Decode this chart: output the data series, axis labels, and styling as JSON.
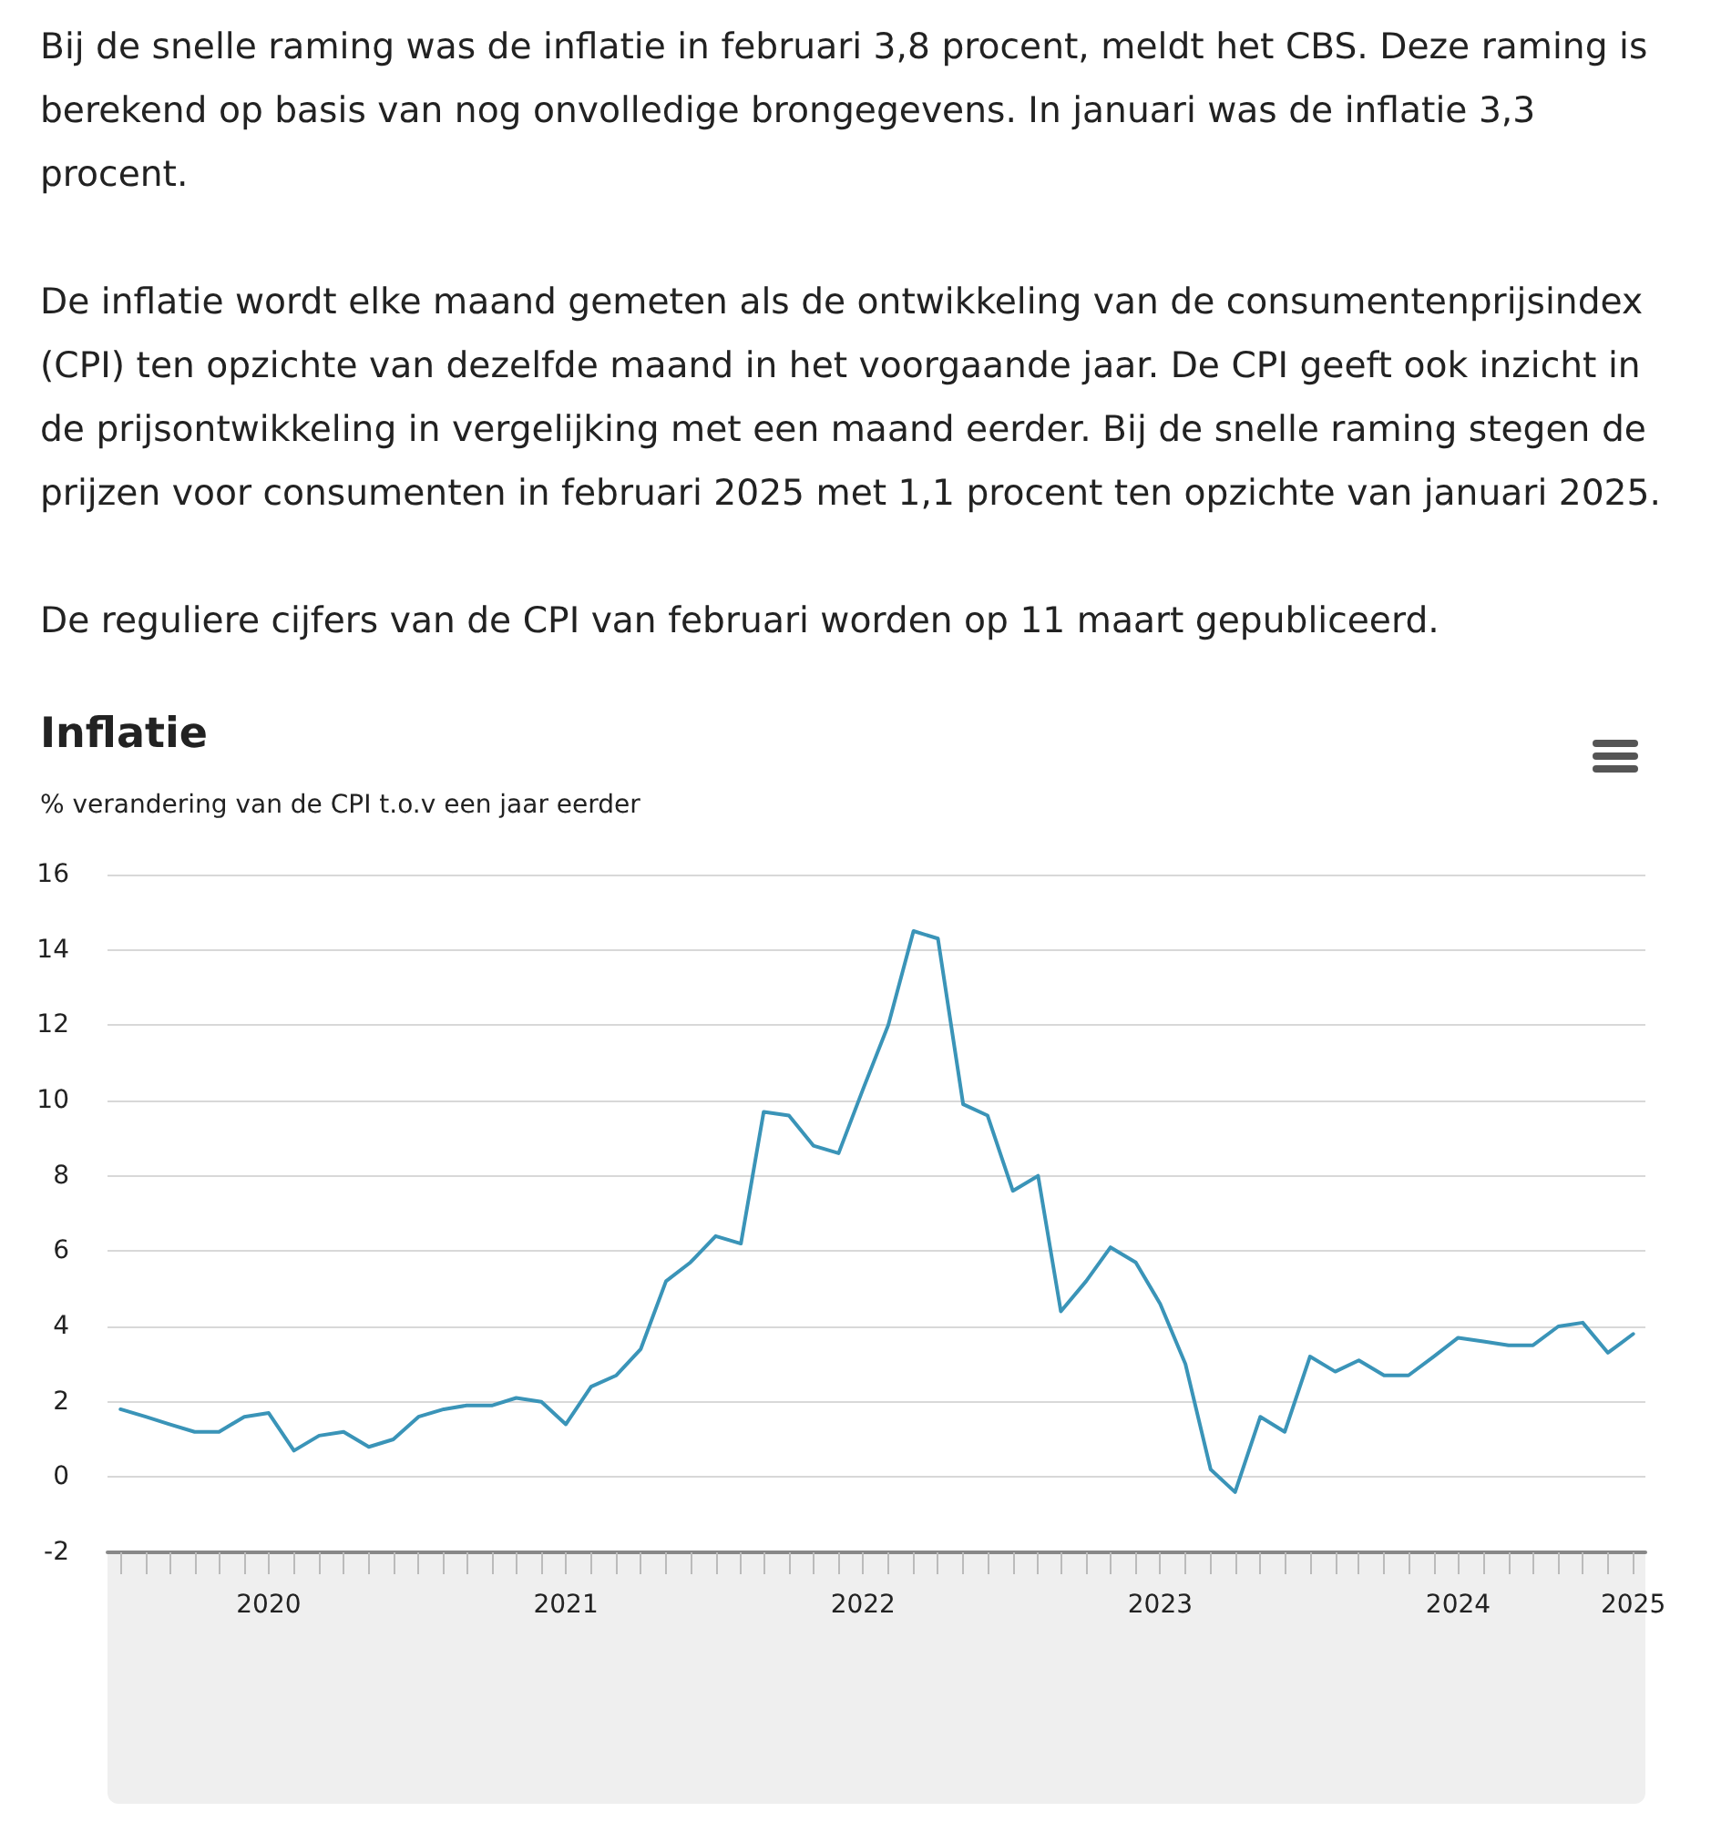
{
  "chart_data": {
    "type": "line",
    "title": "Inflatie",
    "ylabel": "% verandering van de CPI t.o.v een jaar eerder",
    "annotations": [
      "Bij de snelle raming was de inflatie in februari 3,8 procent, meldt het CBS. Deze raming is berekend op basis van nog onvolledige brongegevens. In januari was de inflatie 3,3 procent.",
      "De inflatie wordt elke maand gemeten als de ontwikkeling van de consumentenprijsindex (CPI) ten opzichte van dezelfde maand in het voorgaande jaar. De CPI geeft ook inzicht in de prijsontwikkeling in vergelijking met een maand eerder. Bij de snelle raming stegen de prijzen voor consumenten in februari 2025 met 1,1 procent ten opzichte van januari 2025.",
      "De reguliere cijfers van de CPI van februari worden op 11 maart gepubliceerd."
    ],
    "x": [
      "2020-01",
      "2020-02",
      "2020-03",
      "2020-04",
      "2020-05",
      "2020-06",
      "2020-07",
      "2020-08",
      "2020-09",
      "2020-10",
      "2020-11",
      "2020-12",
      "2021-01",
      "2021-02",
      "2021-03",
      "2021-04",
      "2021-05",
      "2021-06",
      "2021-07",
      "2021-08",
      "2021-09",
      "2021-10",
      "2021-11",
      "2021-12",
      "2022-01",
      "2022-02",
      "2022-03",
      "2022-04",
      "2022-05",
      "2022-06",
      "2022-07",
      "2022-08",
      "2022-09",
      "2022-10",
      "2022-11",
      "2022-12",
      "2023-01",
      "2023-02",
      "2023-03",
      "2023-04",
      "2023-05",
      "2023-06",
      "2023-07",
      "2023-08",
      "2023-09",
      "2023-10",
      "2023-11",
      "2023-12",
      "2024-01",
      "2024-02",
      "2024-03",
      "2024-04",
      "2024-05",
      "2024-06",
      "2024-07",
      "2024-08",
      "2024-09",
      "2024-10",
      "2024-11",
      "2024-12",
      "2025-01",
      "2025-02"
    ],
    "series": [
      {
        "color": "#3a94b8",
        "values": [
          1.8,
          1.6,
          1.4,
          1.2,
          1.2,
          1.6,
          1.7,
          0.7,
          1.1,
          1.2,
          0.8,
          1.0,
          1.6,
          1.8,
          1.9,
          1.9,
          2.1,
          2.0,
          1.4,
          2.4,
          2.7,
          3.4,
          5.2,
          5.7,
          6.4,
          6.2,
          9.7,
          9.6,
          8.8,
          8.6,
          10.3,
          12.0,
          14.5,
          14.3,
          9.9,
          9.6,
          7.6,
          8.0,
          4.4,
          5.2,
          6.1,
          5.7,
          4.6,
          3.0,
          0.2,
          -0.4,
          1.6,
          1.2,
          3.2,
          2.8,
          3.1,
          2.7,
          2.7,
          3.2,
          3.7,
          3.6,
          3.5,
          3.5,
          4.0,
          4.1,
          3.3,
          3.8
        ]
      }
    ],
    "xlim": [
      "2019-12-16",
      "2025-02-16"
    ],
    "xticks": [
      {
        "value": "2020-01",
        "label": null
      },
      {
        "value": "2020-02",
        "label": null
      },
      {
        "value": "2020-03",
        "label": null
      },
      {
        "value": "2020-04",
        "label": null
      },
      {
        "value": "2020-05",
        "label": null
      },
      {
        "value": "2020-06",
        "label": null
      },
      {
        "value": "2020-07",
        "label": "2020"
      },
      {
        "value": "2020-08",
        "label": null
      },
      {
        "value": "2020-09",
        "label": null
      },
      {
        "value": "2020-10",
        "label": null
      },
      {
        "value": "2020-11",
        "label": null
      },
      {
        "value": "2020-12",
        "label": null
      },
      {
        "value": "2021-01",
        "label": null
      },
      {
        "value": "2021-02",
        "label": null
      },
      {
        "value": "2021-03",
        "label": null
      },
      {
        "value": "2021-04",
        "label": null
      },
      {
        "value": "2021-05",
        "label": null
      },
      {
        "value": "2021-06",
        "label": null
      },
      {
        "value": "2021-07",
        "label": "2021"
      },
      {
        "value": "2021-08",
        "label": null
      },
      {
        "value": "2021-09",
        "label": null
      },
      {
        "value": "2021-10",
        "label": null
      },
      {
        "value": "2021-11",
        "label": null
      },
      {
        "value": "2021-12",
        "label": null
      },
      {
        "value": "2022-01",
        "label": null
      },
      {
        "value": "2022-02",
        "label": null
      },
      {
        "value": "2022-03",
        "label": null
      },
      {
        "value": "2022-04",
        "label": null
      },
      {
        "value": "2022-05",
        "label": null
      },
      {
        "value": "2022-06",
        "label": null
      },
      {
        "value": "2022-07",
        "label": "2022"
      },
      {
        "value": "2022-08",
        "label": null
      },
      {
        "value": "2022-09",
        "label": null
      },
      {
        "value": "2022-10",
        "label": null
      },
      {
        "value": "2022-11",
        "label": null
      },
      {
        "value": "2022-12",
        "label": null
      },
      {
        "value": "2023-01",
        "label": null
      },
      {
        "value": "2023-02",
        "label": null
      },
      {
        "value": "2023-03",
        "label": null
      },
      {
        "value": "2023-04",
        "label": null
      },
      {
        "value": "2023-05",
        "label": null
      },
      {
        "value": "2023-06",
        "label": null
      },
      {
        "value": "2023-07",
        "label": "2023"
      },
      {
        "value": "2023-08",
        "label": null
      },
      {
        "value": "2023-09",
        "label": null
      },
      {
        "value": "2023-10",
        "label": null
      },
      {
        "value": "2023-11",
        "label": null
      },
      {
        "value": "2023-12",
        "label": null
      },
      {
        "value": "2024-01",
        "label": null
      },
      {
        "value": "2024-02",
        "label": null
      },
      {
        "value": "2024-03",
        "label": null
      },
      {
        "value": "2024-04",
        "label": null
      },
      {
        "value": "2024-05",
        "label": null
      },
      {
        "value": "2024-06",
        "label": null
      },
      {
        "value": "2024-07",
        "label": "2024"
      },
      {
        "value": "2024-08",
        "label": null
      },
      {
        "value": "2024-09",
        "label": null
      },
      {
        "value": "2024-10",
        "label": null
      },
      {
        "value": "2024-11",
        "label": null
      },
      {
        "value": "2024-12",
        "label": null
      },
      {
        "value": "2025-01",
        "label": null
      },
      {
        "value": "2025-02",
        "label": "2025"
      }
    ],
    "ylim": [
      -2,
      16
    ],
    "yticks": [
      -2,
      0,
      2,
      4,
      6,
      8,
      10,
      12,
      14,
      16
    ],
    "grid": "y",
    "marker": "none",
    "line_style": "solid"
  }
}
